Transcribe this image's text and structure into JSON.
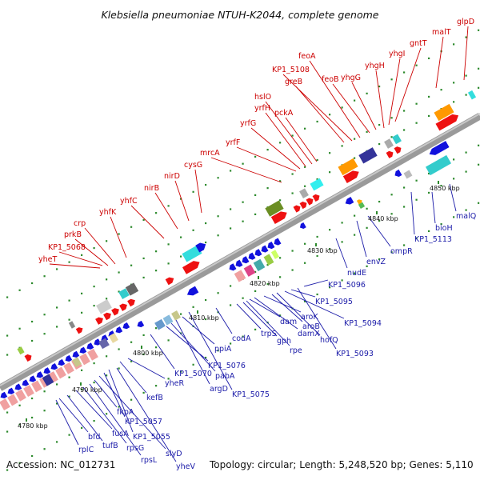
{
  "title": "Klebsiella pneumoniae NTUH-K2044, complete genome",
  "footer": {
    "accession": "Accession: NC_012731",
    "summary": "Topology: circular; Length: 5,248,520 bp; Genes: 5,110"
  },
  "colors": {
    "red_label": "#cc0000",
    "blue_label": "#1a1aa8",
    "backbone": "#888888",
    "forward_gene": "#ee1111",
    "reverse_gene": "#1111dd"
  },
  "ticks": [
    "4780 kbp",
    "4790 kbp",
    "4800 kbp",
    "4810 kbp",
    "4820 kbp",
    "4830 kbp",
    "4840 kbp",
    "4850 kbp"
  ],
  "red_labels": [
    "yheT",
    "KP1_5068",
    "prkB",
    "crp",
    "yhfK",
    "yhfC",
    "nirB",
    "nirD",
    "cysG",
    "mrcA",
    "yrfF",
    "yrfG",
    "yrfH",
    "hslO",
    "pckA",
    "greB",
    "KP1_5108",
    "feoA",
    "feoB",
    "yhgG",
    "yhgH",
    "yhgI",
    "gntT",
    "malT",
    "glpD"
  ],
  "blue_labels": [
    "rplC",
    "bfd",
    "tufB",
    "fusA",
    "rpsG",
    "rpsL",
    "fkpA",
    "slyD",
    "KP1_5057",
    "KP1_5055",
    "yheV",
    "kefB",
    "yheR",
    "KP1_5070",
    "KP1_5076",
    "pabA",
    "argD",
    "ppiA",
    "KP1_5075",
    "codA",
    "trpS",
    "gph",
    "rpe",
    "dam",
    "damX",
    "aroK",
    "aroB",
    "hofQ",
    "KP1_5094",
    "KP1_5095",
    "KP1_5093",
    "KP1_5096",
    "nudE",
    "envZ",
    "ompR",
    "KP1_5113",
    "bioH",
    "malQ"
  ]
}
